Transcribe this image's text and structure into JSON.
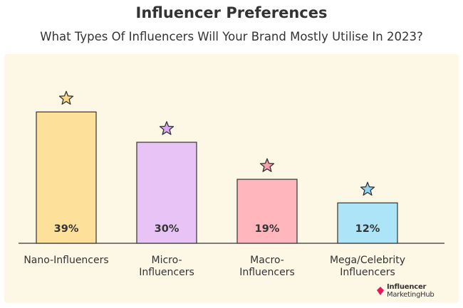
{
  "chart_data": {
    "type": "bar",
    "title": "Influencer Preferences",
    "subtitle": "What Types Of Influencers Will Your Brand Mostly Utilise In 2023?",
    "categories": [
      [
        "Nano-Influencers"
      ],
      [
        "Micro-",
        "Influencers"
      ],
      [
        "Macro-",
        "Influencers"
      ],
      [
        "Mega/Celebrity",
        "Influencers"
      ]
    ],
    "values": [
      39,
      30,
      19,
      12
    ],
    "value_labels": [
      "39%",
      "30%",
      "19%",
      "12%"
    ],
    "ylim": [
      0,
      45
    ],
    "grid": false,
    "legend": "none",
    "colors": [
      "#fde09a",
      "#e8c3f5",
      "#ffb6bc",
      "#ade4f8"
    ],
    "star_colors": [
      "#fcd98a",
      "#d9a9ef",
      "#f9a0ae",
      "#8fd3f4"
    ]
  },
  "brand": {
    "line1": "Influencer",
    "line2": "MarketingHub",
    "color": "#e5195e"
  },
  "colors": {
    "panel_background": "#fdf7e6",
    "outline": "#333333",
    "text": "#333333"
  }
}
